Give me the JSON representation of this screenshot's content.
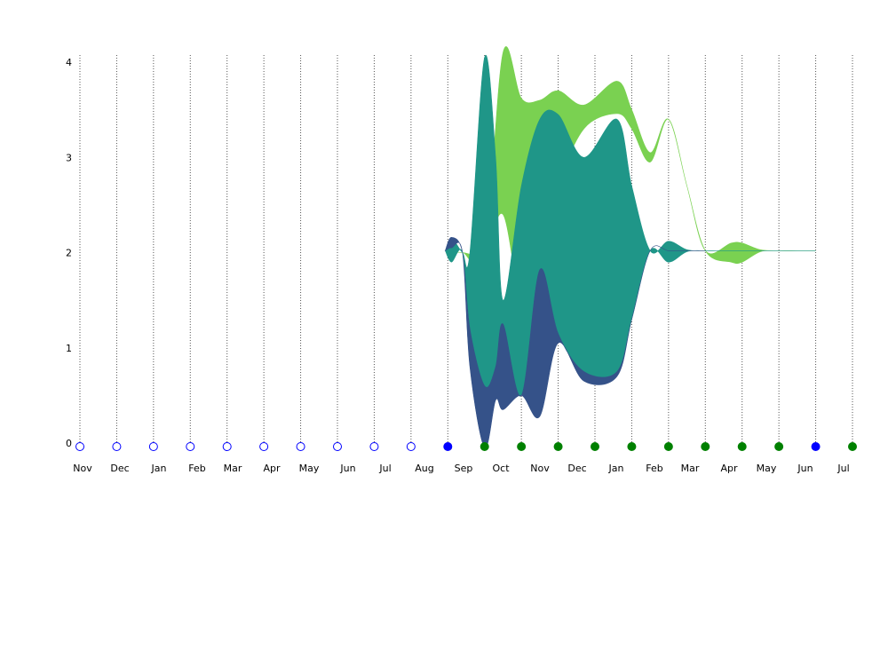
{
  "chart_data": {
    "type": "area",
    "title": "",
    "xlabel": "",
    "ylabel": "",
    "ylim": [
      0,
      4
    ],
    "yticks": [
      0,
      1,
      2,
      3,
      4
    ],
    "grid": "vertical dotted lines at each month",
    "legend": "none",
    "months": [
      "Nov",
      "Dec",
      "Jan",
      "Feb",
      "Mar",
      "Apr",
      "May",
      "Jun",
      "Jul",
      "Aug",
      "Sep",
      "Oct",
      "Nov",
      "Dec",
      "Jan",
      "Feb",
      "Mar",
      "Apr",
      "May",
      "Jun",
      "Jul"
    ],
    "dots": [
      "hollow",
      "hollow",
      "hollow",
      "hollow",
      "hollow",
      "hollow",
      "hollow",
      "hollow",
      "hollow",
      "hollow",
      "blue",
      "green",
      "green",
      "green",
      "green",
      "green",
      "green",
      "green",
      "green",
      "green",
      "blue",
      "green"
    ],
    "series": [
      {
        "color": "#7ad151",
        "x": [
          9.93,
          10.4,
          11.0,
          11.5,
          12.0,
          12.5,
          13.0,
          13.7,
          14.6,
          15.0,
          15.5,
          16.0,
          16.5,
          17.0,
          17.7,
          18.0,
          18.5,
          19.0,
          19.5,
          20.0
        ],
        "upper": [
          2.02,
          2.0,
          2.0,
          4.1,
          3.62,
          3.6,
          3.7,
          3.55,
          3.8,
          3.5,
          3.05,
          3.4,
          2.7,
          2.02,
          2.1,
          2.1,
          2.03,
          2.02,
          2.02,
          2.02
        ],
        "lower": [
          2.02,
          2.0,
          2.0,
          2.4,
          1.5,
          1.9,
          2.7,
          3.3,
          3.46,
          3.3,
          2.95,
          3.4,
          2.7,
          2.02,
          1.9,
          1.9,
          2.01,
          2.02,
          2.02,
          2.02
        ]
      },
      {
        "color": "#1f9688",
        "x": [
          9.93,
          10.1,
          10.4,
          10.6,
          11.0,
          11.3,
          11.5,
          12.0,
          12.5,
          13.0,
          13.7,
          14.6,
          15.0,
          15.5,
          16.0,
          16.5,
          17.0,
          17.3,
          17.7,
          18.0,
          18.4,
          18.5,
          18.7,
          19.0,
          19.5,
          20.0
        ],
        "upper": [
          2.02,
          2.15,
          2.0,
          2.0,
          4.05,
          3.0,
          1.5,
          2.7,
          3.4,
          3.45,
          3.0,
          3.4,
          2.7,
          2.02,
          2.12,
          2.03,
          2.02,
          2.02,
          2.02,
          2.02,
          2.02,
          2.02,
          2.02,
          2.02,
          2.02,
          2.02
        ],
        "lower": [
          2.02,
          1.9,
          2.0,
          1.2,
          0.6,
          0.8,
          1.2,
          0.5,
          1.8,
          1.15,
          0.75,
          0.75,
          1.3,
          2.02,
          1.9,
          2.01,
          2.02,
          2.02,
          2.02,
          2.02,
          2.02,
          2.02,
          2.02,
          2.02,
          2.02,
          2.02
        ]
      },
      {
        "color": "#355289",
        "x": [
          9.93,
          10.1,
          10.4,
          10.6,
          11.0,
          11.3,
          11.5,
          12.0,
          12.5,
          13.0,
          13.7,
          14.6,
          15.0,
          15.5,
          16.0,
          16.5,
          17.0
        ],
        "upper": [
          2.02,
          2.16,
          2.0,
          1.2,
          0.6,
          0.8,
          1.25,
          0.5,
          1.82,
          1.15,
          0.75,
          0.75,
          1.3,
          2.02,
          2.02,
          2.02,
          2.02
        ],
        "lower": [
          2.02,
          2.05,
          2.0,
          0.8,
          -0.05,
          0.45,
          0.35,
          0.5,
          0.28,
          1.05,
          0.65,
          0.7,
          1.3,
          2.02,
          2.02,
          2.02,
          2.02
        ]
      }
    ]
  },
  "colors": {
    "grid": "#555555",
    "dot_green": "#008000",
    "dot_blue": "#0000ff",
    "dot_hollow": "#0000ff",
    "background": "#ffffff"
  }
}
